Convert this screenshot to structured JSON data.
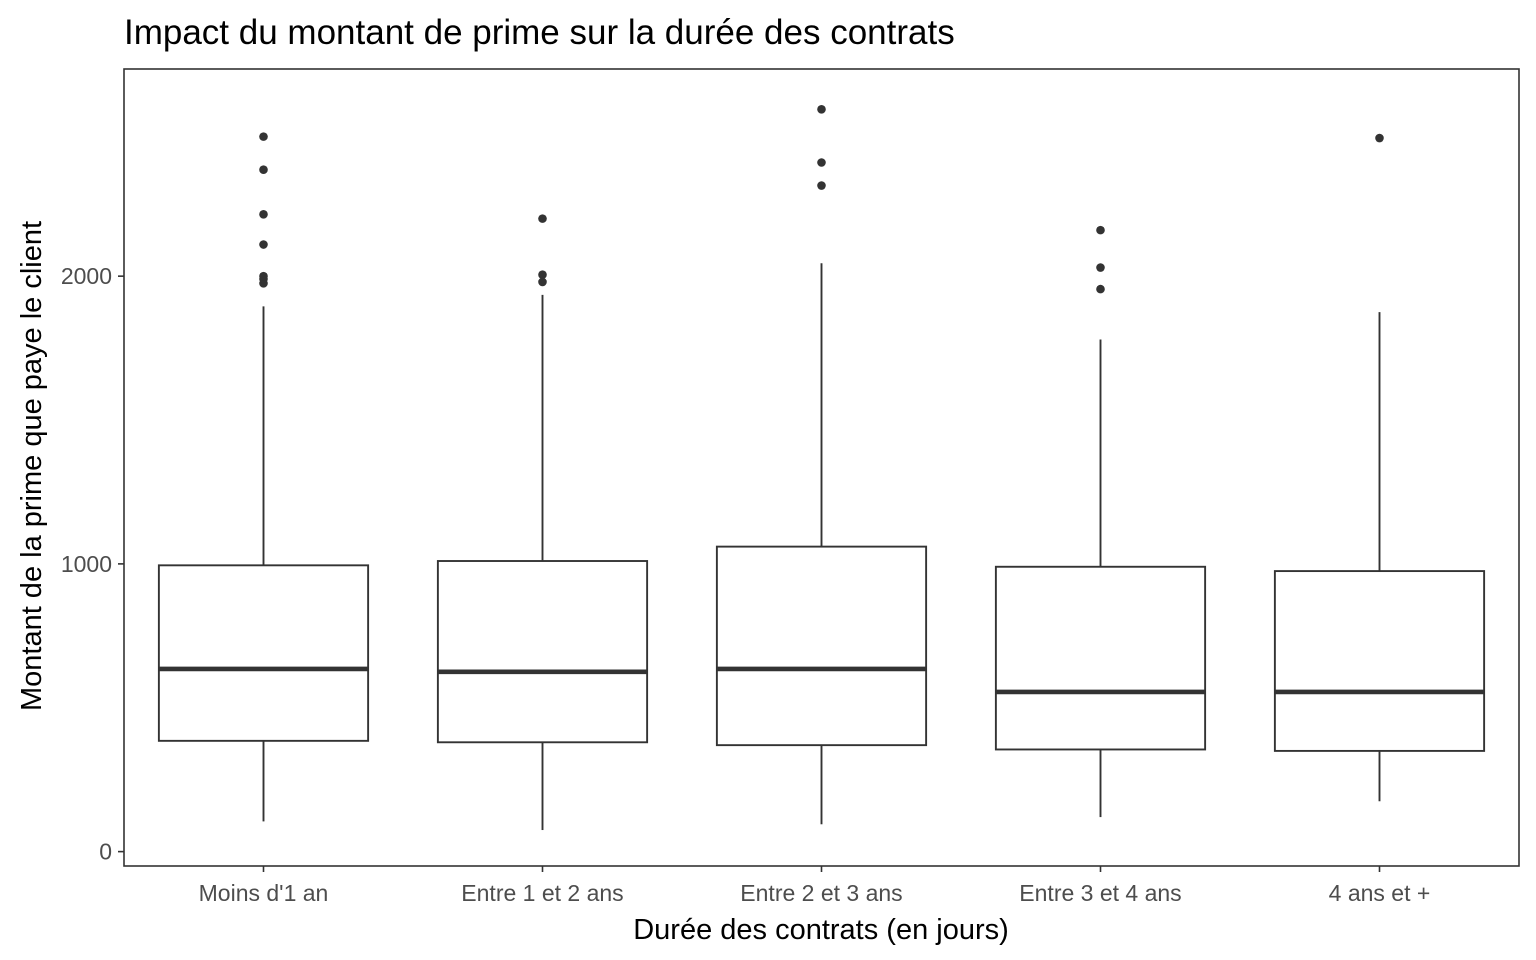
{
  "chart_data": {
    "type": "boxplot",
    "title": "Impact du montant de prime sur la durée des contrats",
    "xlabel": "Durée des contrats (en jours)",
    "ylabel": "Montant de la prime que paye le client",
    "categories": [
      "Moins d'1 an",
      "Entre 1 et 2 ans",
      "Entre 2 et 3 ans",
      "Entre 3 et 4 ans",
      "4 ans et +"
    ],
    "ylim": [
      -50,
      2720
    ],
    "yticks": [
      0,
      1000,
      2000
    ],
    "ytick_labels": [
      "0",
      "1000",
      "2000"
    ],
    "grid": false,
    "boxes": [
      {
        "category": "Moins d'1 an",
        "whisker_low": 105,
        "q1": 385,
        "median": 635,
        "q3": 995,
        "whisker_high": 1895,
        "outliers": [
          1975,
          1990,
          2000,
          2110,
          2215,
          2370,
          2485
        ]
      },
      {
        "category": "Entre 1 et 2 ans",
        "whisker_low": 75,
        "q1": 380,
        "median": 625,
        "q3": 1010,
        "whisker_high": 1935,
        "outliers": [
          1980,
          2005,
          2200
        ]
      },
      {
        "category": "Entre 2 et 3 ans",
        "whisker_low": 95,
        "q1": 370,
        "median": 635,
        "q3": 1060,
        "whisker_high": 2045,
        "outliers": [
          2315,
          2395,
          2580
        ]
      },
      {
        "category": "Entre 3 et 4 ans",
        "whisker_low": 120,
        "q1": 355,
        "median": 555,
        "q3": 990,
        "whisker_high": 1780,
        "outliers": [
          1955,
          2030,
          2160
        ]
      },
      {
        "category": "4 ans et +",
        "whisker_low": 175,
        "q1": 350,
        "median": 555,
        "q3": 975,
        "whisker_high": 1875,
        "outliers": [
          2480
        ]
      }
    ],
    "colors": {
      "box_stroke": "#333333",
      "box_fill": "#ffffff",
      "tick_text": "#4d4d4d",
      "text": "#000000"
    }
  }
}
